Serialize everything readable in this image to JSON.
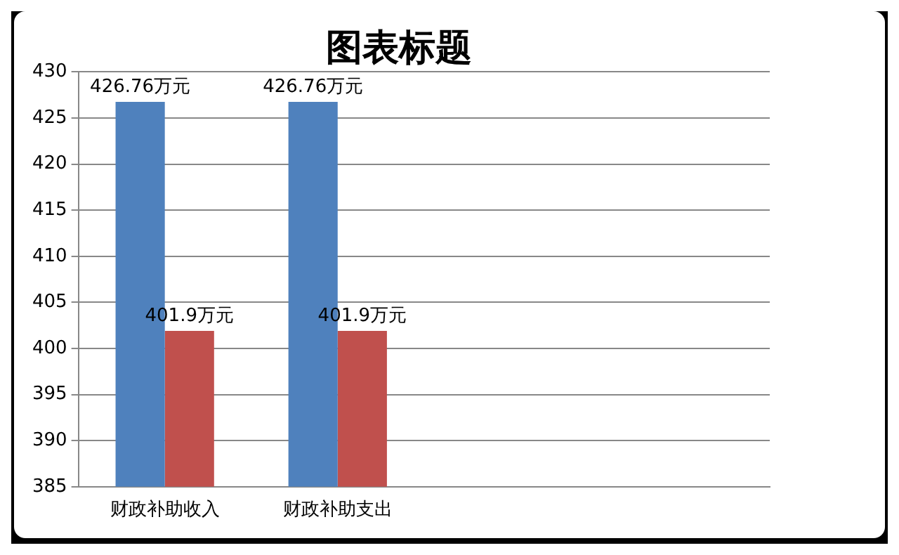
{
  "chart_data": {
    "type": "bar",
    "title": "图表标题",
    "categories": [
      "财政补助收入",
      "财政补助支出",
      null,
      null
    ],
    "series": [
      {
        "color": "#4f81bd",
        "values": [
          426.76,
          426.76,
          null,
          null
        ],
        "value_labels": [
          "426.76万元",
          "426.76万元",
          null,
          null
        ]
      },
      {
        "color": "#c0504d",
        "values": [
          401.9,
          401.9,
          null,
          null
        ],
        "value_labels": [
          "401.9万元",
          "401.9万元",
          null,
          null
        ]
      }
    ],
    "ylim": [
      385,
      430
    ],
    "yticks": [
      385,
      390,
      395,
      400,
      405,
      410,
      415,
      420,
      425,
      430
    ],
    "grid": "y",
    "legend": false
  }
}
